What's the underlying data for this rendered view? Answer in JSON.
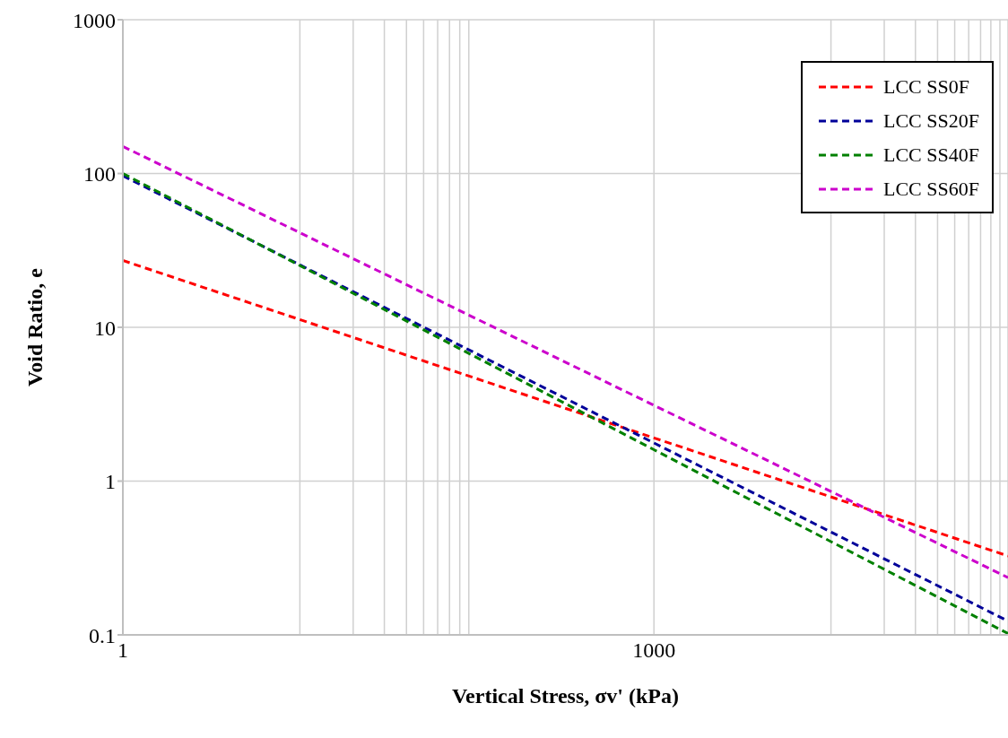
{
  "chart_data": {
    "type": "line",
    "xlabel": "Vertical Stress, σv' (kPa)",
    "ylabel": "Void Ratio, e",
    "log": "xy",
    "xlim": [
      1,
      100000
    ],
    "ylim": [
      0.1,
      1000
    ],
    "xticks": [
      1,
      {
        "value": 10,
        "label": null
      },
      {
        "value": 20,
        "label": null
      },
      {
        "value": 30,
        "label": null
      },
      {
        "value": 40,
        "label": null
      },
      {
        "value": 50,
        "label": null
      },
      {
        "value": 60,
        "label": null
      },
      {
        "value": 70,
        "label": null
      },
      {
        "value": 80,
        "label": null
      },
      {
        "value": 90,
        "label": null
      },
      1000,
      {
        "value": 10000,
        "label": null
      },
      {
        "value": 20000,
        "label": null
      },
      {
        "value": 30000,
        "label": null
      },
      {
        "value": 40000,
        "label": null
      },
      {
        "value": 50000,
        "label": null
      },
      {
        "value": 60000,
        "label": null
      },
      {
        "value": 70000,
        "label": null
      },
      {
        "value": 80000,
        "label": null
      },
      {
        "value": 90000,
        "label": null
      }
    ],
    "yticks": [
      0.1,
      1,
      10,
      100,
      1000
    ],
    "grid": true,
    "legend": "top right",
    "line_style": "dashed",
    "marker": "none",
    "series": [
      {
        "name": "LCC SS0F",
        "color": "#ff0000",
        "x": [
          1,
          1000,
          100000
        ],
        "values": [
          27.2,
          1.91,
          0.326
        ]
      },
      {
        "name": "LCC SS20F",
        "color": "#000099",
        "x": [
          1,
          1000,
          100000
        ],
        "values": [
          96.6,
          1.77,
          0.123
        ]
      },
      {
        "name": "LCC SS40F",
        "color": "#008000",
        "x": [
          1,
          1000,
          100000
        ],
        "values": [
          100,
          1.6,
          0.102
        ]
      },
      {
        "name": "LCC SS60F",
        "color": "#cc00cc",
        "x": [
          1,
          1000,
          100000
        ],
        "values": [
          150,
          3.11,
          0.236
        ]
      }
    ]
  }
}
